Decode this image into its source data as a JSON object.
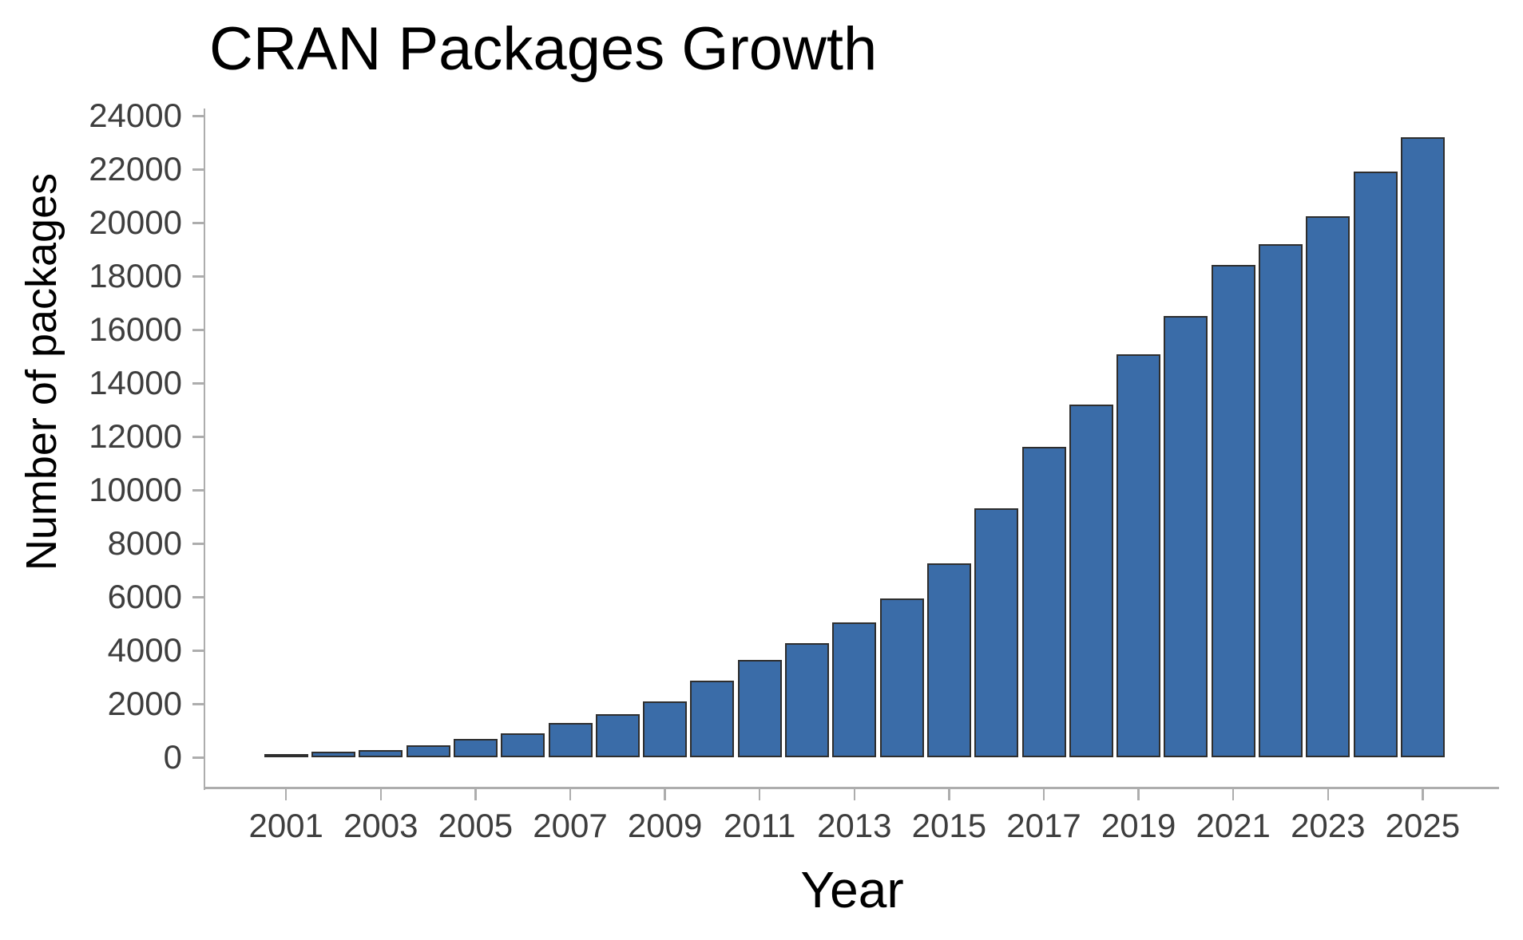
{
  "title": "CRAN Packages Growth",
  "x_axis": {
    "label": "Year",
    "tick_labels": [
      "2001",
      "2003",
      "2005",
      "2007",
      "2009",
      "2011",
      "2013",
      "2015",
      "2017",
      "2019",
      "2021",
      "2023",
      "2025"
    ]
  },
  "y_axis": {
    "label": "Number of packages",
    "tick_labels": [
      "0",
      "2000",
      "4000",
      "6000",
      "8000",
      "10000",
      "12000",
      "14000",
      "16000",
      "18000",
      "20000",
      "22000",
      "24000"
    ]
  },
  "chart_data": {
    "type": "bar",
    "title": "CRAN Packages Growth",
    "xlabel": "Year",
    "ylabel": "Number of packages",
    "categories": [
      2001,
      2002,
      2003,
      2004,
      2005,
      2006,
      2007,
      2008,
      2009,
      2010,
      2011,
      2012,
      2013,
      2014,
      2015,
      2016,
      2017,
      2018,
      2019,
      2020,
      2021,
      2022,
      2023,
      2024,
      2025
    ],
    "values": [
      120,
      210,
      280,
      450,
      690,
      920,
      1300,
      1620,
      2100,
      2880,
      3650,
      4270,
      5070,
      5950,
      7280,
      9320,
      11620,
      13220,
      15100,
      16530,
      18430,
      19200,
      20260,
      21930,
      23220
    ],
    "ylim": [
      0,
      24000
    ],
    "y_tick_step": 2000,
    "x_tick_years": [
      2001,
      2003,
      2005,
      2007,
      2009,
      2011,
      2013,
      2015,
      2017,
      2019,
      2021,
      2023,
      2025
    ],
    "grid": false,
    "legend_position": "none",
    "colors": {
      "bar_fill": "#3a6ca8",
      "bar_stroke": "#2e2e2e",
      "axis_line": "#adadad",
      "tick_label": "#3e3e3e",
      "title": "#000000"
    }
  }
}
